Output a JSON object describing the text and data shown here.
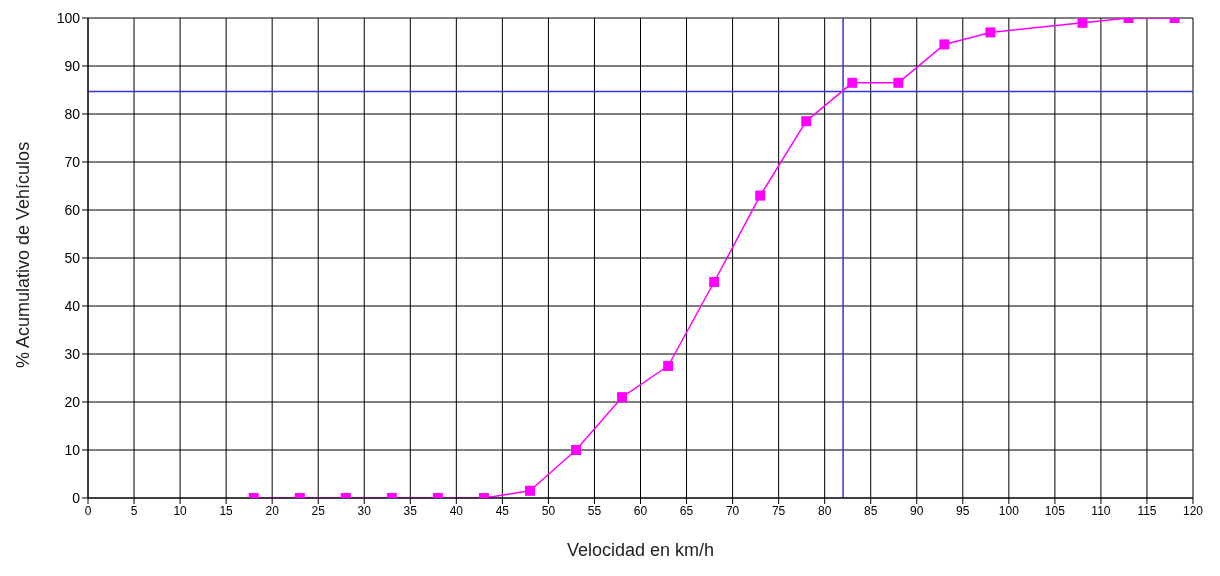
{
  "chart_data": {
    "type": "line",
    "xlabel": "Velocidad en km/h",
    "ylabel": "% Acumulativo de Vehículos",
    "x": [
      18,
      23,
      28,
      33,
      38,
      43,
      48,
      53,
      58,
      63,
      68,
      73,
      78,
      83,
      88,
      93,
      98,
      108,
      113,
      118
    ],
    "series": [
      {
        "color": "#ff00ff",
        "values": [
          0,
          0,
          0,
          0,
          0,
          0,
          1.5,
          10,
          21,
          27.5,
          45,
          63,
          78.5,
          86.5,
          86.5,
          94.5,
          97,
          99,
          100,
          100
        ]
      }
    ],
    "xlim": [
      0,
      120
    ],
    "xticks": [
      0,
      5,
      10,
      15,
      20,
      25,
      30,
      35,
      40,
      45,
      50,
      55,
      60,
      65,
      70,
      75,
      80,
      85,
      90,
      95,
      100,
      105,
      110,
      115,
      120
    ],
    "ylim": [
      0,
      100
    ],
    "yticks": [
      0,
      10,
      20,
      30,
      40,
      50,
      60,
      70,
      80,
      90,
      100
    ],
    "ref_lines": [
      {
        "axis": "y",
        "value": 84.7,
        "color": "#3333dd"
      },
      {
        "axis": "x",
        "value": 82,
        "color": "#3333dd"
      }
    ],
    "grid": true,
    "marker": "square",
    "line_style": "solid",
    "legend": false
  }
}
